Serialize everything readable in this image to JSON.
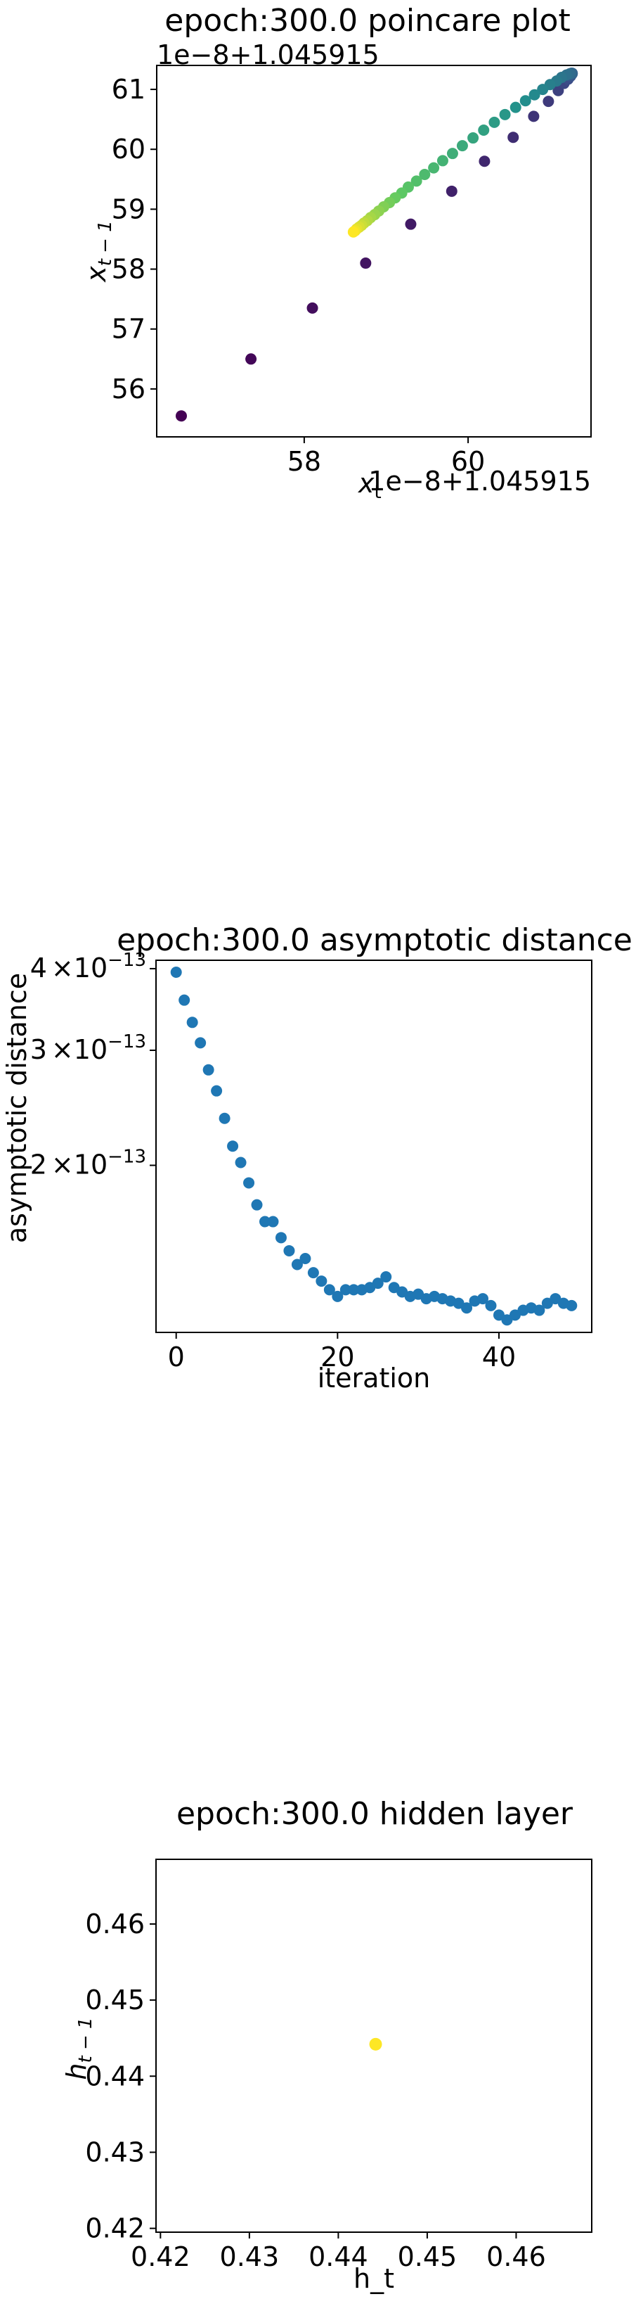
{
  "chart_data": [
    {
      "type": "scatter",
      "title": "epoch:300.0 poincare plot",
      "xlabel": "x_t",
      "ylabel": "x_{t-1}",
      "x_offset_label": "1e−8+1.045915",
      "y_offset_label": "1e−8+1.045915",
      "xlim": [
        56.2,
        61.5
      ],
      "ylim": [
        55.2,
        61.4
      ],
      "xticks": [
        58,
        60
      ],
      "yticks": [
        56,
        57,
        58,
        59,
        60,
        61
      ],
      "xtick_labels": [
        "58",
        "60"
      ],
      "ytick_labels": [
        "56",
        "57",
        "58",
        "59",
        "60",
        "61"
      ],
      "colormap": [
        "#440154",
        "#3b528b",
        "#21908d",
        "#5dc963",
        "#fde725"
      ],
      "points": {
        "x": [
          56.5,
          57.35,
          58.1,
          58.75,
          59.3,
          59.8,
          60.2,
          60.55,
          60.8,
          60.98,
          61.1,
          61.17,
          61.22,
          61.25,
          61.26,
          61.27,
          61.27,
          61.26,
          61.24,
          61.2,
          61.14,
          61.08,
          61.0,
          60.91,
          60.81,
          60.7,
          60.58,
          60.45,
          60.32,
          60.19,
          60.06,
          59.93,
          59.81,
          59.69,
          59.58,
          59.47,
          59.37,
          59.27,
          59.19,
          59.11,
          59.04,
          58.97,
          58.91,
          58.86,
          58.81,
          58.77,
          58.73,
          58.7,
          58.67,
          58.64,
          58.62,
          58.6
        ],
        "y": [
          55.55,
          56.5,
          57.35,
          58.1,
          58.75,
          59.3,
          59.8,
          60.2,
          60.55,
          60.8,
          60.98,
          61.1,
          61.17,
          61.22,
          61.25,
          61.26,
          61.27,
          61.27,
          61.26,
          61.24,
          61.2,
          61.14,
          61.08,
          61.0,
          60.91,
          60.81,
          60.7,
          60.58,
          60.45,
          60.32,
          60.19,
          60.06,
          59.93,
          59.81,
          59.69,
          59.58,
          59.47,
          59.37,
          59.27,
          59.19,
          59.11,
          59.04,
          58.97,
          58.91,
          58.86,
          58.81,
          58.77,
          58.73,
          58.7,
          58.67,
          58.64,
          58.62
        ],
        "color": "viridis by iteration"
      }
    },
    {
      "type": "scatter",
      "title": "epoch:300.0 asymptotic distance",
      "xlabel": "iteration",
      "ylabel": "asymptotic distance",
      "yscale": "log",
      "xlim": [
        -2.5,
        51.5
      ],
      "ylim": [
        1.11e-13,
        4.12e-13
      ],
      "xticks": [
        0,
        20,
        40
      ],
      "xtick_labels": [
        "0",
        "20",
        "40"
      ],
      "yticks": [
        2e-13,
        3e-13,
        4e-13
      ],
      "ytick_labels": [
        {
          "mantissa": "2",
          "times": "×",
          "base": "10",
          "exp": "−13"
        },
        {
          "mantissa": "3",
          "times": "×",
          "base": "10",
          "exp": "−13"
        },
        {
          "mantissa": "4",
          "times": "×",
          "base": "10",
          "exp": "−13"
        }
      ],
      "color": "#1f77b4",
      "x": [
        0,
        1,
        2,
        3,
        4,
        5,
        6,
        7,
        8,
        9,
        10,
        11,
        12,
        13,
        14,
        15,
        16,
        17,
        18,
        19,
        20,
        21,
        22,
        23,
        24,
        25,
        26,
        27,
        28,
        29,
        30,
        31,
        32,
        33,
        34,
        35,
        36,
        37,
        38,
        39,
        40,
        41,
        42,
        43,
        44,
        45,
        46,
        47,
        48,
        49
      ],
      "y": [
        3.95e-13,
        3.58e-13,
        3.31e-13,
        3.08e-13,
        2.8e-13,
        2.6e-13,
        2.36e-13,
        2.14e-13,
        2.02e-13,
        1.88e-13,
        1.74e-13,
        1.64e-13,
        1.64e-13,
        1.55e-13,
        1.48e-13,
        1.41e-13,
        1.44e-13,
        1.37e-13,
        1.33e-13,
        1.29e-13,
        1.26e-13,
        1.29e-13,
        1.29e-13,
        1.29e-13,
        1.3e-13,
        1.32e-13,
        1.35e-13,
        1.3e-13,
        1.28e-13,
        1.26e-13,
        1.27e-13,
        1.25e-13,
        1.26e-13,
        1.25e-13,
        1.24e-13,
        1.23e-13,
        1.21e-13,
        1.24e-13,
        1.25e-13,
        1.22e-13,
        1.18e-13,
        1.16e-13,
        1.18e-13,
        1.2e-13,
        1.21e-13,
        1.2e-13,
        1.23e-13,
        1.25e-13,
        1.23e-13,
        1.22e-13
      ]
    },
    {
      "type": "scatter",
      "title": "epoch:300.0 hidden layer",
      "xlabel": "h_t",
      "ylabel": "h_{t-1}",
      "xlim": [
        0.4195,
        0.4685
      ],
      "ylim": [
        0.4195,
        0.4685
      ],
      "xticks": [
        0.42,
        0.43,
        0.44,
        0.45,
        0.46
      ],
      "yticks": [
        0.42,
        0.43,
        0.44,
        0.45,
        0.46
      ],
      "xtick_labels": [
        "0.42",
        "0.43",
        "0.44",
        "0.45",
        "0.46"
      ],
      "ytick_labels": [
        "0.42",
        "0.43",
        "0.44",
        "0.45",
        "0.46"
      ],
      "color": "#fde725",
      "x": [
        0.4442
      ],
      "y": [
        0.4442
      ]
    }
  ]
}
